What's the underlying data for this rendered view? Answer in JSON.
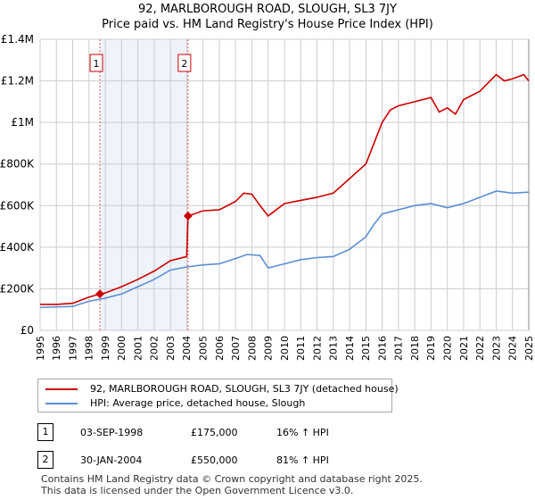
{
  "title": "92, MARLBOROUGH ROAD, SLOUGH, SL3 7JY",
  "subtitle": "Price paid vs. HM Land Registry's House Price Index (HPI)",
  "chart_data": {
    "type": "line",
    "xlim": [
      1995,
      2025
    ],
    "ylim": [
      0,
      1400000
    ],
    "x_ticks": [
      1995,
      1996,
      1997,
      1998,
      1999,
      2000,
      2001,
      2002,
      2003,
      2004,
      2005,
      2006,
      2007,
      2008,
      2009,
      2010,
      2011,
      2012,
      2013,
      2014,
      2015,
      2016,
      2017,
      2018,
      2019,
      2020,
      2021,
      2022,
      2023,
      2024,
      2025
    ],
    "y_ticks": [
      {
        "v": 0,
        "label": "£0"
      },
      {
        "v": 200000,
        "label": "£200K"
      },
      {
        "v": 400000,
        "label": "£400K"
      },
      {
        "v": 600000,
        "label": "£600K"
      },
      {
        "v": 800000,
        "label": "£800K"
      },
      {
        "v": 1000000,
        "label": "£1M"
      },
      {
        "v": 1200000,
        "label": "£1.2M"
      },
      {
        "v": 1400000,
        "label": "£1.4M"
      }
    ],
    "grid": true,
    "shaded_range": [
      1998.67,
      2004.08
    ],
    "series": [
      {
        "name": "92, MARLBOROUGH ROAD, SLOUGH, SL3 7JY (detached house)",
        "color": "#cc0000",
        "x": [
          1995,
          1996,
          1997,
          1998,
          1998.67,
          1999,
          2000,
          2001,
          2002,
          2003,
          2004.0,
          2004.08,
          2005,
          2006,
          2007,
          2007.5,
          2008,
          2008.5,
          2009,
          2009.5,
          2010,
          2011,
          2012,
          2013,
          2014,
          2015,
          2015.5,
          2016,
          2016.5,
          2017,
          2018,
          2019,
          2019.5,
          2020,
          2020.5,
          2021,
          2022,
          2023,
          2023.5,
          2024,
          2024.7,
          2025
        ],
        "y": [
          125000,
          125000,
          130000,
          160000,
          175000,
          180000,
          210000,
          245000,
          285000,
          335000,
          355000,
          550000,
          575000,
          580000,
          620000,
          660000,
          655000,
          600000,
          550000,
          580000,
          610000,
          625000,
          640000,
          660000,
          730000,
          800000,
          900000,
          1000000,
          1060000,
          1080000,
          1100000,
          1120000,
          1050000,
          1070000,
          1040000,
          1110000,
          1150000,
          1230000,
          1200000,
          1210000,
          1230000,
          1200000
        ]
      },
      {
        "name": "HPI: Average price, detached house, Slough",
        "color": "#5b8fd4",
        "x": [
          1995,
          1997,
          1998,
          1999,
          2000,
          2001,
          2002,
          2003,
          2004,
          2005,
          2006,
          2007,
          2007.7,
          2008.5,
          2009,
          2010,
          2011,
          2012,
          2013,
          2014,
          2015,
          2015.5,
          2016,
          2017,
          2018,
          2019,
          2020,
          2021,
          2022,
          2023,
          2024,
          2025
        ],
        "y": [
          110000,
          115000,
          140000,
          155000,
          175000,
          210000,
          245000,
          290000,
          305000,
          315000,
          320000,
          345000,
          365000,
          360000,
          300000,
          320000,
          340000,
          350000,
          355000,
          390000,
          450000,
          510000,
          560000,
          580000,
          600000,
          610000,
          590000,
          610000,
          640000,
          670000,
          660000,
          665000
        ]
      }
    ],
    "annotations": [
      {
        "label": "1",
        "x": 1998.67,
        "y": 175000
      },
      {
        "label": "2",
        "x": 2004.08,
        "y": 550000
      }
    ]
  },
  "legend": [
    {
      "label": "92, MARLBOROUGH ROAD, SLOUGH, SL3 7JY (detached house)",
      "color": "#cc0000"
    },
    {
      "label": "HPI: Average price, detached house, Slough",
      "color": "#5b8fd4"
    }
  ],
  "transactions": [
    {
      "num": "1",
      "date": "03-SEP-1998",
      "price": "£175,000",
      "hpi": "16% ↑ HPI"
    },
    {
      "num": "2",
      "date": "30-JAN-2004",
      "price": "£550,000",
      "hpi": "81% ↑ HPI"
    }
  ],
  "footer": [
    "Contains HM Land Registry data © Crown copyright and database right 2025.",
    "This data is licensed under the Open Government Licence v3.0."
  ]
}
